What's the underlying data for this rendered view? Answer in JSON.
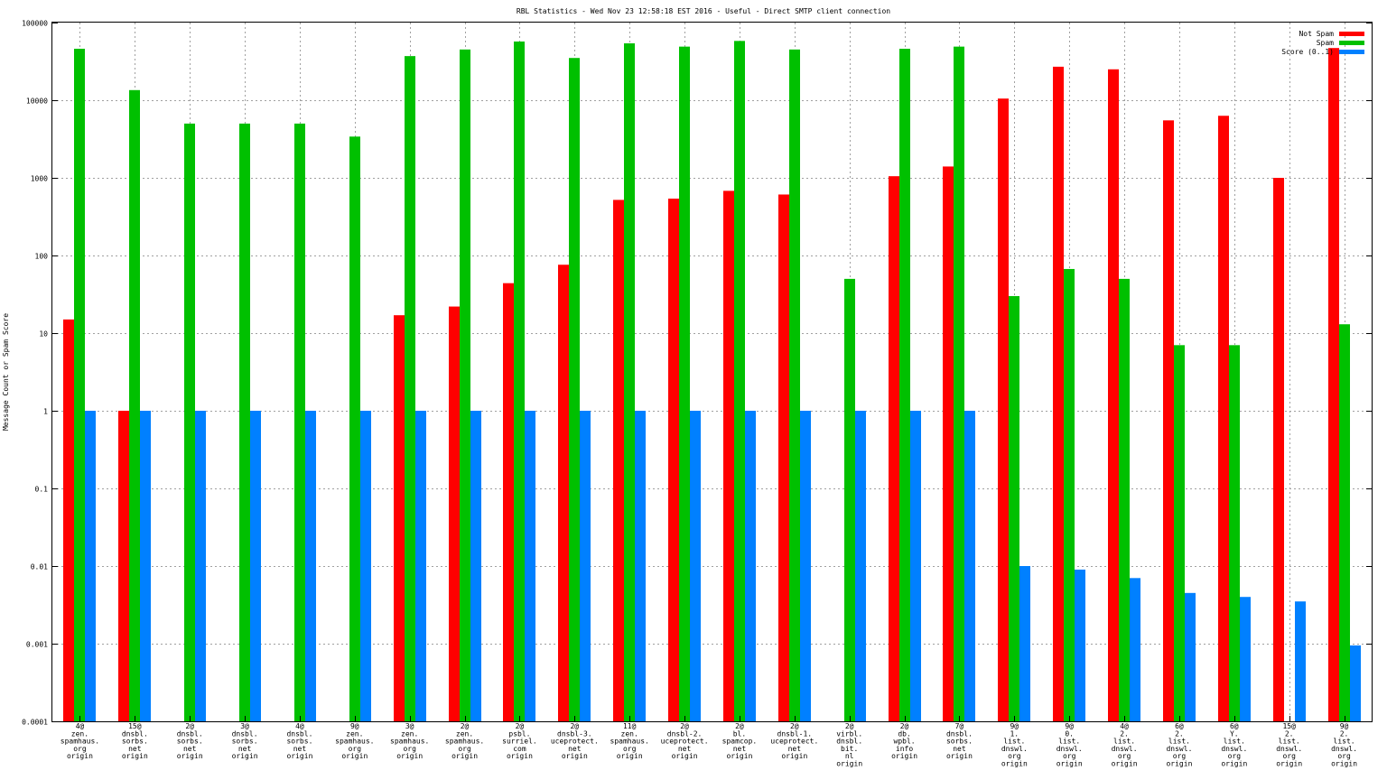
{
  "chart_data": {
    "type": "bar",
    "title": "RBL Statistics - Wed Nov 23 12:58:18 EST 2016 - Useful - Direct SMTP client connection",
    "ylabel": "Message Count or Spam Score",
    "xlabel": "",
    "yscale": "log",
    "ylim": [
      0.0001,
      100000
    ],
    "grid": true,
    "legend_position": "top-right",
    "yticks": [
      "0.0001",
      "0.001",
      "0.01",
      "0.1",
      "1",
      "10",
      "100",
      "1000",
      "10000",
      "100000"
    ],
    "categories": [
      [
        "4@",
        "zen.",
        "spamhaus.",
        "org",
        "origin"
      ],
      [
        "15@",
        "dnsbl.",
        "sorbs.",
        "net",
        "origin"
      ],
      [
        "2@",
        "dnsbl.",
        "sorbs.",
        "net",
        "origin"
      ],
      [
        "3@",
        "dnsbl.",
        "sorbs.",
        "net",
        "origin"
      ],
      [
        "4@",
        "dnsbl.",
        "sorbs.",
        "net",
        "origin"
      ],
      [
        "9@",
        "zen.",
        "spamhaus.",
        "org",
        "origin"
      ],
      [
        "3@",
        "zen.",
        "spamhaus.",
        "org",
        "origin"
      ],
      [
        "2@",
        "zen.",
        "spamhaus.",
        "org",
        "origin"
      ],
      [
        "2@",
        "psbl.",
        "surriel.",
        "com",
        "origin"
      ],
      [
        "2@",
        "dnsbl-3.",
        "uceprotect.",
        "net",
        "origin"
      ],
      [
        "11@",
        "zen.",
        "spamhaus.",
        "org",
        "origin"
      ],
      [
        "2@",
        "dnsbl-2.",
        "uceprotect.",
        "net",
        "origin"
      ],
      [
        "2@",
        "bl.",
        "spamcop.",
        "net",
        "origin"
      ],
      [
        "2@",
        "dnsbl-1.",
        "uceprotect.",
        "net",
        "origin"
      ],
      [
        "2@",
        "virbl.",
        "dnsbl.",
        "bit.",
        "nl",
        "origin"
      ],
      [
        "2@",
        "db.",
        "wpbl.",
        "info",
        "origin"
      ],
      [
        "7@",
        "dnsbl.",
        "sorbs.",
        "net",
        "origin"
      ],
      [
        "9@",
        "1.",
        "list.",
        "dnswl.",
        "org",
        "origin"
      ],
      [
        "9@",
        "0.",
        "list.",
        "dnswl.",
        "org",
        "origin"
      ],
      [
        "4@",
        "2.",
        "list.",
        "dnswl.",
        "org",
        "origin"
      ],
      [
        "6@",
        "2.",
        "list.",
        "dnswl.",
        "org",
        "origin"
      ],
      [
        "6@",
        "Y.",
        "list.",
        "dnswl.",
        "org",
        "origin"
      ],
      [
        "15@",
        "2.",
        "list.",
        "dnswl.",
        "org",
        "origin"
      ],
      [
        "9@",
        "2.",
        "list.",
        "dnswl.",
        "org",
        "origin"
      ]
    ],
    "series": [
      {
        "name": "Not Spam",
        "color": "#ff0000",
        "values": [
          15,
          1,
          null,
          null,
          null,
          null,
          17,
          22,
          44,
          76,
          520,
          540,
          680,
          610,
          null,
          1050,
          1400,
          10500,
          27000,
          25000,
          5500,
          6300,
          1000,
          47000
        ]
      },
      {
        "name": "Spam",
        "color": "#00c000",
        "values": [
          46000,
          13500,
          5000,
          5000,
          5000,
          3400,
          37000,
          45000,
          57000,
          35000,
          54000,
          49000,
          58000,
          45000,
          50,
          46000,
          49000,
          30,
          67,
          50,
          7,
          7,
          null,
          13
        ]
      },
      {
        "name": "Score (0..1)",
        "color": "#0080ff",
        "values": [
          1,
          1,
          1,
          1,
          1,
          1,
          1,
          1,
          1,
          1,
          1,
          1,
          1,
          1,
          1,
          1,
          1,
          0.01,
          0.009,
          0.007,
          0.0045,
          0.004,
          0.0035,
          0.00095
        ]
      }
    ]
  }
}
